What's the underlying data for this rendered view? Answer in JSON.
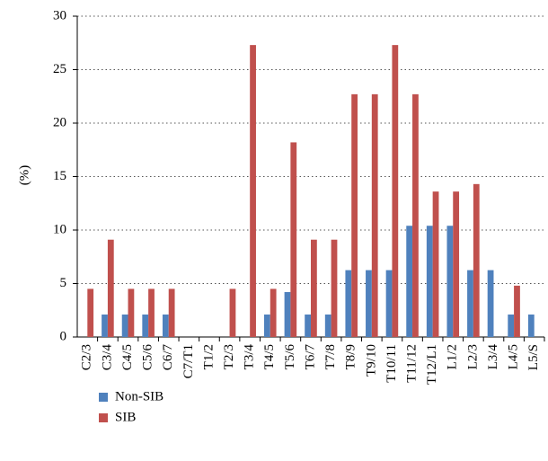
{
  "chart_data": {
    "type": "bar",
    "y_label": "(%)",
    "categories": [
      "C2/3",
      "C3/4",
      "C4/5",
      "C5/6",
      "C6/7",
      "C7/T1",
      "T1/2",
      "T2/3",
      "T3/4",
      "T4/5",
      "T5/6",
      "T6/7",
      "T7/8",
      "T8/9",
      "T9/10",
      "T10/11",
      "T11/12",
      "T12/L1",
      "L1/2",
      "L2/3",
      "L3/4",
      "L4/5",
      "L5/S"
    ],
    "series": [
      {
        "name": "Non-SIB",
        "color": "#4f81bd",
        "values": [
          0,
          2.1,
          2.1,
          2.1,
          2.1,
          0,
          0,
          0,
          0,
          2.1,
          4.2,
          2.1,
          2.1,
          6.25,
          6.25,
          6.25,
          10.4,
          10.4,
          10.4,
          6.25,
          6.25,
          2.1,
          2.1
        ]
      },
      {
        "name": "SIB",
        "color": "#c0504d",
        "values": [
          4.5,
          9.1,
          4.5,
          4.5,
          4.5,
          0,
          0,
          4.5,
          27.3,
          4.5,
          18.2,
          9.1,
          9.1,
          22.7,
          22.7,
          27.3,
          22.7,
          13.6,
          13.6,
          14.3,
          0,
          4.8,
          0
        ]
      }
    ],
    "ylim": [
      0,
      30
    ],
    "yticks": [
      0,
      5,
      10,
      15,
      20,
      25,
      30
    ],
    "grid": true,
    "legend": "bottom-left"
  }
}
